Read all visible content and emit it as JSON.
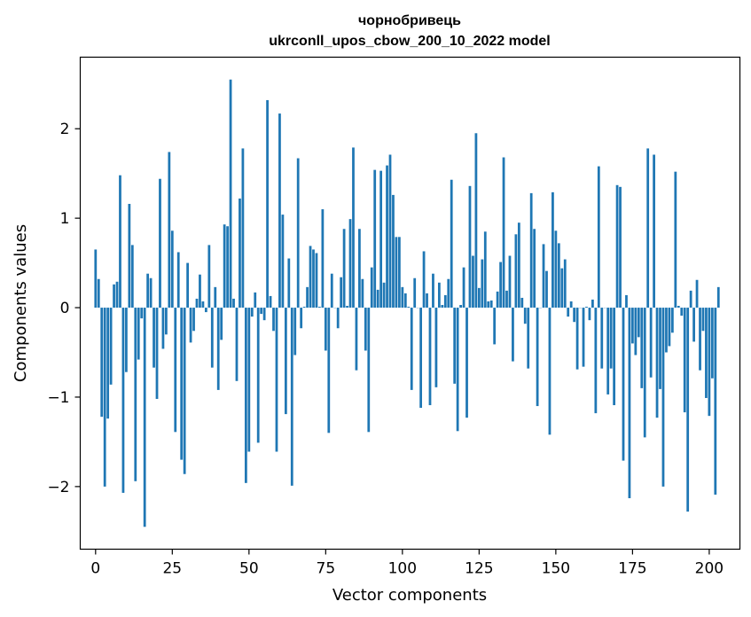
{
  "chart_data": {
    "type": "bar",
    "title": "чорнобривець",
    "subtitle": "ukrconll_upos_cbow_200_10_2022 model",
    "xlabel": "Vector components",
    "ylabel": "Components values",
    "xlim": [
      -5,
      210
    ],
    "ylim": [
      -2.7,
      2.8
    ],
    "xticks": [
      0,
      25,
      50,
      75,
      100,
      125,
      150,
      175,
      200
    ],
    "xtick_labels": [
      "0",
      "25",
      "50",
      "75",
      "100",
      "125",
      "150",
      "175",
      "200"
    ],
    "yticks": [
      -2,
      -1,
      0,
      1,
      2
    ],
    "ytick_labels": [
      "−2",
      "−1",
      "0",
      "1",
      "2"
    ],
    "grid": false,
    "bar_color": "#1f77b4",
    "x_start": 0,
    "values": [
      0.65,
      0.32,
      -1.22,
      -2.0,
      -1.24,
      -0.86,
      0.26,
      0.29,
      1.48,
      -2.07,
      -0.72,
      1.16,
      0.7,
      -1.94,
      -0.58,
      -0.12,
      -2.45,
      0.38,
      0.33,
      -0.67,
      -1.02,
      1.44,
      -0.46,
      -0.3,
      1.74,
      0.86,
      -1.39,
      0.62,
      -1.7,
      -1.86,
      0.5,
      -0.39,
      -0.26,
      0.1,
      0.37,
      0.07,
      -0.05,
      0.7,
      -0.67,
      0.23,
      -0.92,
      -0.36,
      0.93,
      0.91,
      2.55,
      0.1,
      -0.82,
      1.22,
      1.78,
      -1.96,
      -1.61,
      -0.1,
      0.17,
      -1.51,
      -0.07,
      -0.14,
      2.32,
      0.13,
      -0.26,
      -1.61,
      2.17,
      1.04,
      -1.19,
      0.55,
      -1.99,
      -0.53,
      1.67,
      -0.23,
      0.01,
      0.23,
      0.69,
      0.65,
      0.61,
      0.01,
      1.1,
      -0.48,
      -1.4,
      0.38,
      0.0,
      -0.23,
      0.34,
      0.88,
      0.02,
      0.99,
      1.79,
      -0.7,
      0.88,
      0.32,
      -0.48,
      -1.39,
      0.45,
      1.54,
      0.2,
      1.53,
      0.28,
      1.59,
      1.71,
      1.26,
      0.79,
      0.79,
      0.23,
      0.16,
      0.01,
      -0.92,
      0.33,
      0.0,
      -1.12,
      0.63,
      0.16,
      -1.09,
      0.38,
      -0.89,
      0.28,
      0.03,
      0.14,
      0.32,
      1.43,
      -0.85,
      -1.38,
      0.03,
      0.45,
      -1.23,
      1.36,
      0.58,
      1.95,
      0.22,
      0.54,
      0.85,
      0.07,
      0.08,
      -0.41,
      0.18,
      0.51,
      1.68,
      0.19,
      0.58,
      -0.6,
      0.82,
      0.95,
      0.11,
      -0.18,
      -0.68,
      1.28,
      0.88,
      -1.1,
      0.0,
      0.71,
      0.41,
      -1.42,
      1.29,
      0.86,
      0.72,
      0.44,
      0.54,
      -0.1,
      0.07,
      -0.16,
      -0.69,
      0.0,
      -0.66,
      0.01,
      -0.14,
      0.09,
      -1.18,
      1.58,
      -0.68,
      0.0,
      -0.97,
      -0.68,
      -1.09,
      1.37,
      1.35,
      -1.71,
      0.14,
      -2.13,
      -0.4,
      -0.53,
      -0.33,
      -0.9,
      -1.45,
      1.78,
      -0.78,
      1.71,
      -1.23,
      -0.91,
      -2.0,
      -0.5,
      -0.43,
      -0.28,
      1.52,
      0.02,
      -0.09,
      -1.17,
      -2.28,
      0.19,
      -0.38,
      0.31,
      -0.7,
      -0.26,
      -1.01,
      -1.21,
      -0.79,
      -2.09,
      0.23
    ]
  }
}
